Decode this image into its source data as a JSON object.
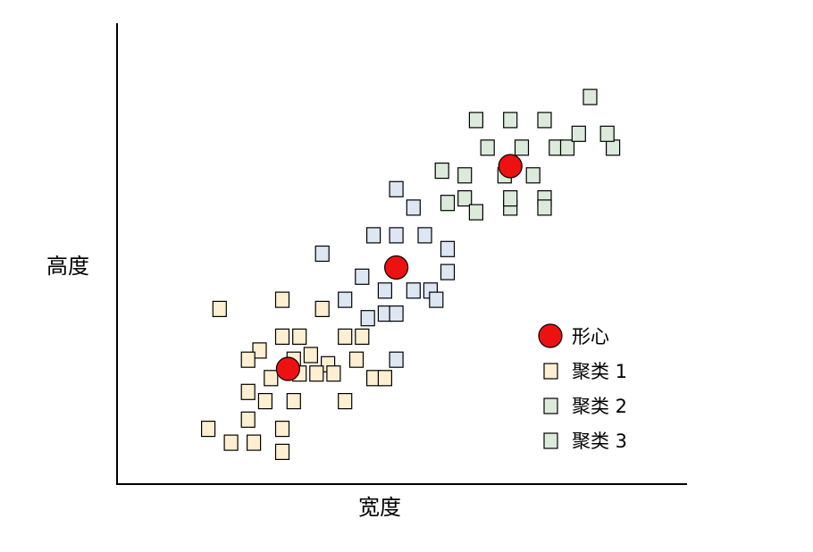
{
  "chart_data": {
    "type": "scatter",
    "xlabel": "宽度",
    "ylabel": "高度",
    "xlim": [
      0,
      100
    ],
    "ylim": [
      0,
      100
    ],
    "grid": false,
    "legend": "right",
    "series": [
      {
        "name": "聚类 1",
        "marker": "square",
        "color": "#fdefd0",
        "points": [
          [
            18,
            38
          ],
          [
            29,
            40
          ],
          [
            36,
            38
          ],
          [
            25,
            29
          ],
          [
            29,
            32
          ],
          [
            32,
            32
          ],
          [
            40,
            32
          ],
          [
            43,
            32
          ],
          [
            23,
            27
          ],
          [
            31,
            27
          ],
          [
            34,
            28
          ],
          [
            37,
            26
          ],
          [
            42,
            27
          ],
          [
            27,
            23
          ],
          [
            32,
            24
          ],
          [
            35,
            24
          ],
          [
            38,
            24
          ],
          [
            45,
            23
          ],
          [
            47,
            23
          ],
          [
            23,
            20
          ],
          [
            26,
            18
          ],
          [
            31,
            18
          ],
          [
            40,
            18
          ],
          [
            16,
            12
          ],
          [
            20,
            9
          ],
          [
            24,
            9
          ],
          [
            29,
            12
          ],
          [
            29,
            7
          ],
          [
            23,
            14
          ]
        ]
      },
      {
        "name": "聚类 2",
        "marker": "square",
        "color": "#dde6f3",
        "points": [
          [
            49,
            64
          ],
          [
            52,
            60
          ],
          [
            45,
            54
          ],
          [
            49,
            54
          ],
          [
            54,
            54
          ],
          [
            58,
            51
          ],
          [
            36,
            50
          ],
          [
            49,
            47
          ],
          [
            58,
            46
          ],
          [
            43,
            45
          ],
          [
            47,
            42
          ],
          [
            52,
            42
          ],
          [
            55,
            42
          ],
          [
            40,
            40
          ],
          [
            56,
            40
          ],
          [
            47,
            37
          ],
          [
            49,
            37
          ],
          [
            44,
            36
          ],
          [
            49,
            27
          ]
        ]
      },
      {
        "name": "聚类 3",
        "marker": "square",
        "color": "#dceadb",
        "points": [
          [
            83,
            84
          ],
          [
            63,
            79
          ],
          [
            69,
            79
          ],
          [
            75,
            79
          ],
          [
            65,
            73
          ],
          [
            71,
            73
          ],
          [
            77,
            73
          ],
          [
            61,
            67
          ],
          [
            68,
            67
          ],
          [
            73,
            67
          ],
          [
            79,
            73
          ],
          [
            87,
            73
          ],
          [
            86,
            76
          ],
          [
            81,
            76
          ],
          [
            57,
            68
          ],
          [
            75,
            62
          ],
          [
            58,
            61
          ],
          [
            61,
            62
          ],
          [
            63,
            59
          ],
          [
            69,
            60
          ],
          [
            75,
            60
          ],
          [
            69,
            62
          ]
        ]
      }
    ],
    "centroids": {
      "name": "形心",
      "color": "#ee1111",
      "points": [
        [
          30,
          25
        ],
        [
          49,
          47
        ],
        [
          69,
          69
        ]
      ]
    }
  }
}
